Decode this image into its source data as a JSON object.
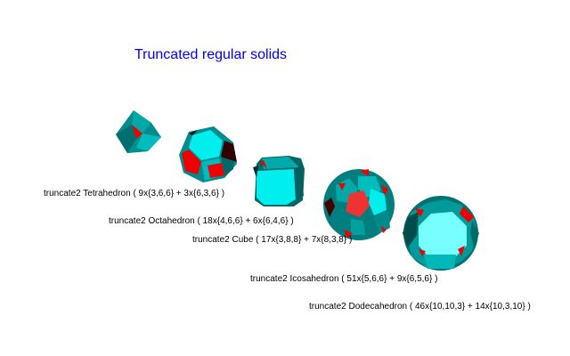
{
  "title": "Truncated regular solids",
  "colors": {
    "title": "#0000ee",
    "cyan_light": "#00eeee",
    "cyan": "#00c8c8",
    "teal_dark": "#006464",
    "red": "#ee0000",
    "dark_red": "#3a0000"
  },
  "solids": [
    {
      "name": "tetrahedron",
      "caption": "truncate2 Tetrahedron ( 9x{3,6,6} + 3x{6,3,6} )"
    },
    {
      "name": "octahedron",
      "caption": "truncate2 Octahedron ( 18x{4,6,6} + 6x{6,4,6} )"
    },
    {
      "name": "cube",
      "caption": "truncate2 Cube ( 17x{3,8,8} + 7x{8,3,8} )"
    },
    {
      "name": "icosahedron",
      "caption": "truncate2 Icosahedron ( 51x{5,6,6} + 9x{6,5,6} )"
    },
    {
      "name": "dodecahedron",
      "caption": "truncate2 Dodecahedron ( 46x{10,10,3} + 14x{10,3,10} )"
    }
  ]
}
